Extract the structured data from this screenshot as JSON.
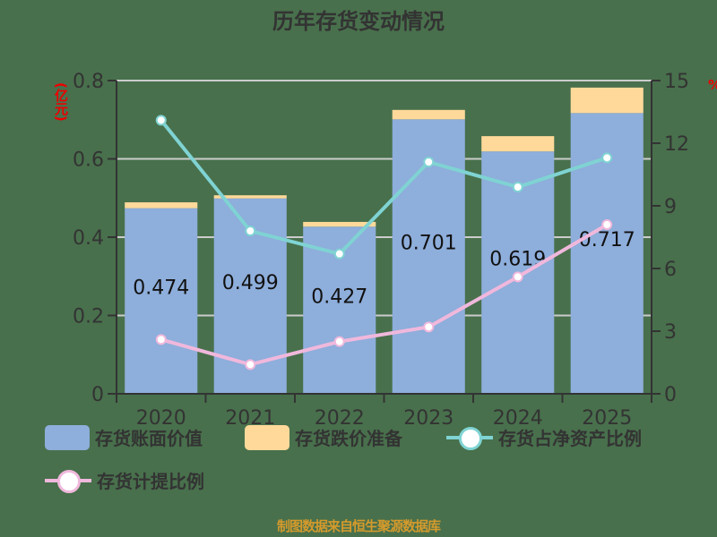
{
  "title": "历年存货变动情况",
  "footer": "制图数据来自恒生聚源数据库",
  "colors": {
    "background": "#48704c",
    "book_value": "#8eaedb",
    "reserve": "#ffd99a",
    "net_asset_ratio": "#7fd3d3",
    "provision_ratio": "#f0b8dc",
    "axis": "#333333",
    "grid": "#cccccc",
    "unit_label": "#ee0000",
    "footer": "#d49a2c"
  },
  "legend": {
    "book_value": "存货账面价值",
    "reserve": "存货跌价准备",
    "net_asset_ratio": "存货占净资产比例",
    "provision_ratio": "存货计提比例"
  },
  "axes": {
    "left_unit": "(亿元)",
    "right_unit": "%"
  },
  "chart_data": {
    "type": "bar",
    "title": "历年存货变动情况",
    "categories": [
      "2020",
      "2021",
      "2022",
      "2023",
      "2024",
      "2025"
    ],
    "xlabel": "",
    "ylabel": "(亿元)",
    "ylabel_right": "%",
    "ylim": [
      0,
      0.8
    ],
    "yticks": [
      0,
      0.2,
      0.4,
      0.6,
      0.8
    ],
    "ylim_right": [
      0,
      15
    ],
    "yticks_right": [
      0,
      3,
      6,
      9,
      12,
      15
    ],
    "grid": true,
    "legend_position": "bottom",
    "stacked": true,
    "series": [
      {
        "name": "存货账面价值",
        "type": "bar",
        "axis": "left",
        "values": [
          0.474,
          0.499,
          0.427,
          0.701,
          0.619,
          0.717
        ],
        "labels": [
          "0.474",
          "0.499",
          "0.427",
          "0.701",
          "0.619",
          "0.717"
        ]
      },
      {
        "name": "存货跌价准备",
        "type": "bar",
        "axis": "left",
        "values": [
          0.015,
          0.008,
          0.012,
          0.024,
          0.039,
          0.065
        ]
      },
      {
        "name": "存货占净资产比例",
        "type": "line",
        "axis": "right",
        "values": [
          13.1,
          7.8,
          6.7,
          11.1,
          9.9,
          11.3
        ]
      },
      {
        "name": "存货计提比例",
        "type": "line",
        "axis": "right",
        "values": [
          2.6,
          1.4,
          2.5,
          3.2,
          5.6,
          8.1
        ]
      }
    ]
  }
}
